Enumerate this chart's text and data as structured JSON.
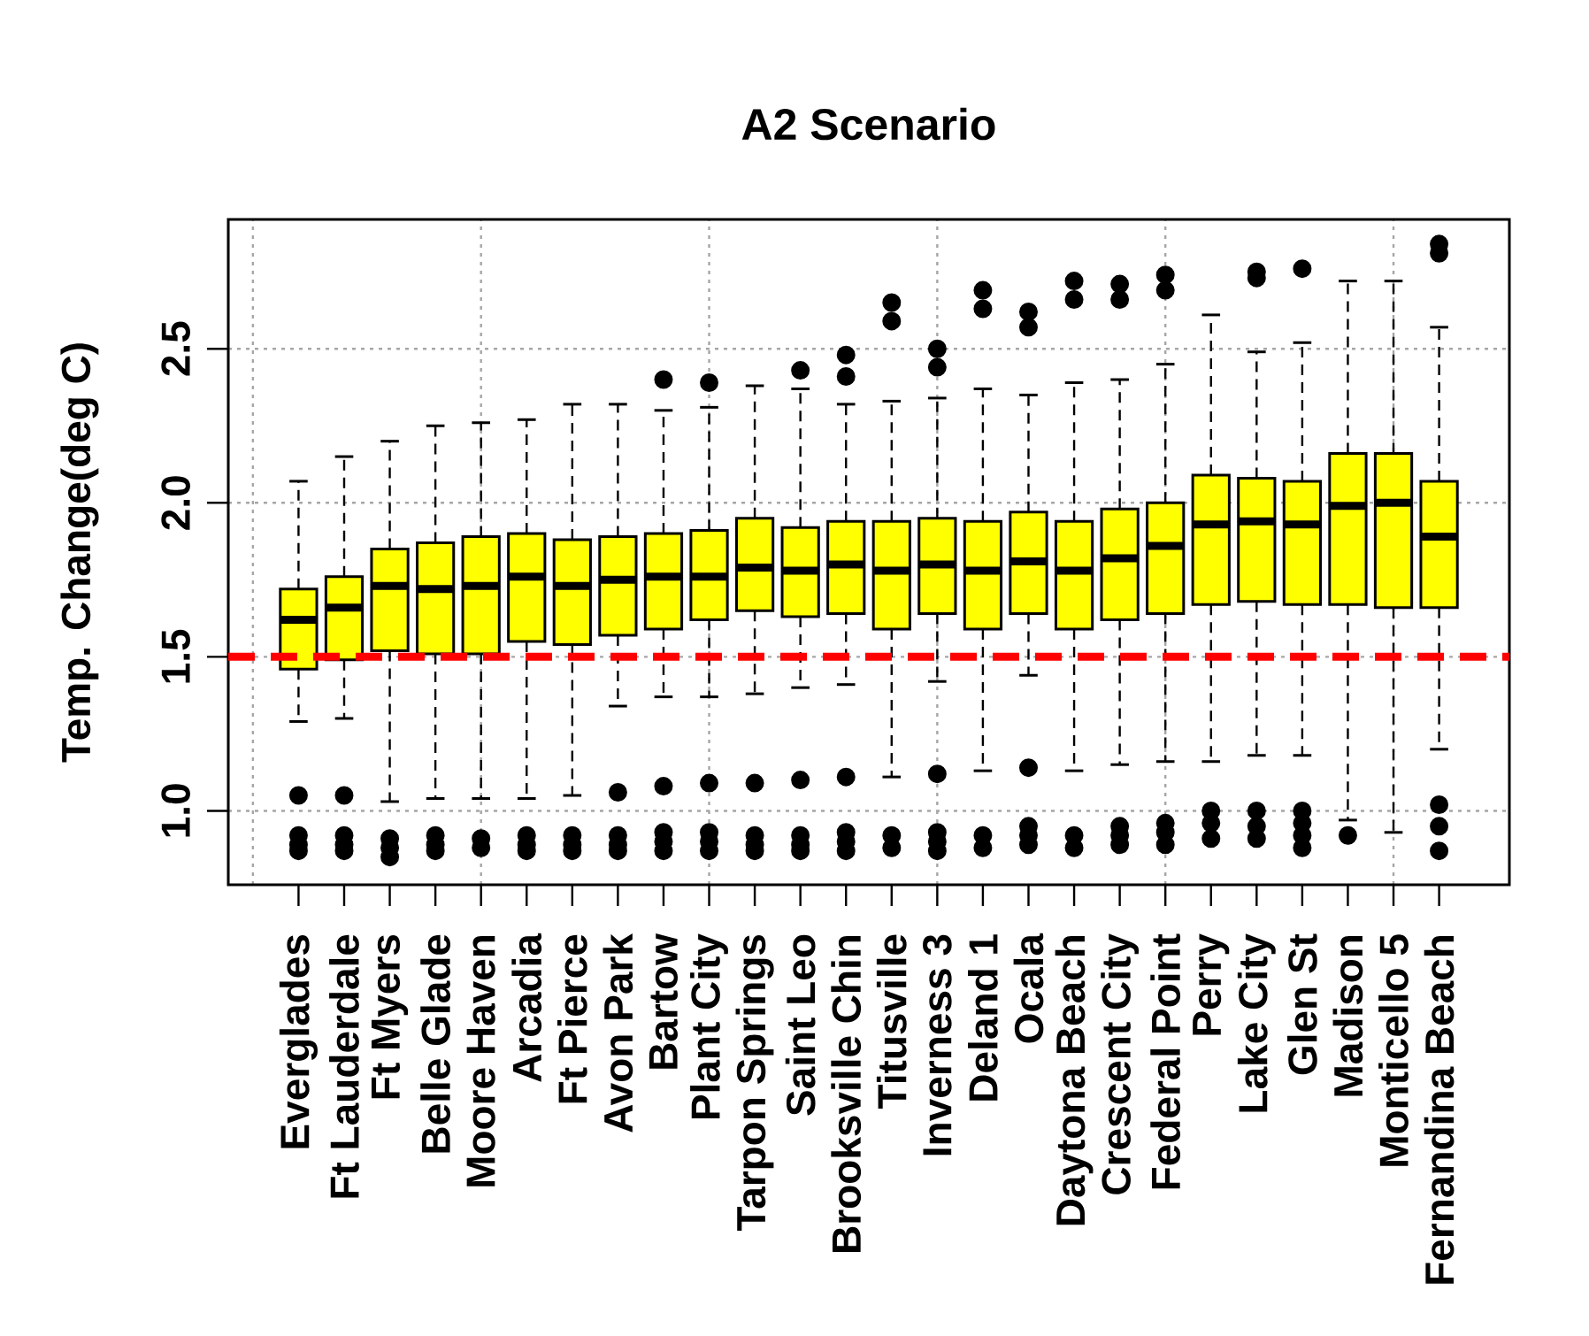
{
  "chart_data": {
    "type": "box",
    "title": "A2 Scenario",
    "ylabel": "Temp. Change(deg C)",
    "categories": [
      "Everglades",
      "Ft Lauderdale",
      "Ft Myers",
      "Belle Glade",
      "Moore Haven",
      "Arcadia",
      "Ft Pierce",
      "Avon Park",
      "Bartow",
      "Plant City",
      "Tarpon Springs",
      "Saint Leo",
      "Brooksville Chin",
      "Titusville",
      "Inverness 3",
      "Deland 1",
      "Ocala",
      "Daytona Beach",
      "Crescent City",
      "Federal Point",
      "Perry",
      "Lake City",
      "Glen St",
      "Madison",
      "Monticello 5",
      "Fernandina Beach"
    ],
    "boxes": [
      {
        "low": 1.29,
        "q1": 1.46,
        "median": 1.62,
        "q3": 1.72,
        "high": 2.07,
        "outliers": [
          1.05,
          0.92,
          0.89,
          0.87
        ]
      },
      {
        "low": 1.3,
        "q1": 1.49,
        "median": 1.66,
        "q3": 1.76,
        "high": 2.15,
        "outliers": [
          1.05,
          0.92,
          0.89,
          0.87
        ]
      },
      {
        "low": 1.03,
        "q1": 1.52,
        "median": 1.73,
        "q3": 1.85,
        "high": 2.2,
        "outliers": [
          0.91,
          0.88,
          0.85
        ]
      },
      {
        "low": 1.04,
        "q1": 1.51,
        "median": 1.72,
        "q3": 1.87,
        "high": 2.25,
        "outliers": [
          0.92,
          0.89,
          0.87
        ]
      },
      {
        "low": 1.04,
        "q1": 1.51,
        "median": 1.73,
        "q3": 1.89,
        "high": 2.26,
        "outliers": [
          0.91,
          0.88
        ]
      },
      {
        "low": 1.04,
        "q1": 1.55,
        "median": 1.76,
        "q3": 1.9,
        "high": 2.27,
        "outliers": [
          0.92,
          0.89,
          0.87
        ]
      },
      {
        "low": 1.05,
        "q1": 1.54,
        "median": 1.73,
        "q3": 1.88,
        "high": 2.32,
        "outliers": [
          0.92,
          0.89,
          0.87
        ]
      },
      {
        "low": 1.34,
        "q1": 1.57,
        "median": 1.75,
        "q3": 1.89,
        "high": 2.32,
        "outliers": [
          1.06,
          0.92,
          0.89,
          0.87
        ]
      },
      {
        "low": 1.37,
        "q1": 1.59,
        "median": 1.76,
        "q3": 1.9,
        "high": 2.3,
        "outliers": [
          2.4,
          1.08,
          0.93,
          0.9,
          0.87
        ]
      },
      {
        "low": 1.37,
        "q1": 1.62,
        "median": 1.76,
        "q3": 1.91,
        "high": 2.31,
        "outliers": [
          2.39,
          1.09,
          0.93,
          0.9,
          0.87
        ]
      },
      {
        "low": 1.38,
        "q1": 1.65,
        "median": 1.79,
        "q3": 1.95,
        "high": 2.38,
        "outliers": [
          1.09,
          0.92,
          0.89,
          0.87
        ]
      },
      {
        "low": 1.4,
        "q1": 1.63,
        "median": 1.78,
        "q3": 1.92,
        "high": 2.37,
        "outliers": [
          2.43,
          1.1,
          0.92,
          0.89,
          0.87
        ]
      },
      {
        "low": 1.41,
        "q1": 1.64,
        "median": 1.8,
        "q3": 1.94,
        "high": 2.32,
        "outliers": [
          2.48,
          2.41,
          1.11,
          0.93,
          0.9,
          0.87
        ]
      },
      {
        "low": 1.11,
        "q1": 1.59,
        "median": 1.78,
        "q3": 1.94,
        "high": 2.33,
        "outliers": [
          2.65,
          2.59,
          0.92,
          0.88
        ]
      },
      {
        "low": 1.42,
        "q1": 1.64,
        "median": 1.8,
        "q3": 1.95,
        "high": 2.34,
        "outliers": [
          2.5,
          2.44,
          1.12,
          0.93,
          0.9,
          0.87
        ]
      },
      {
        "low": 1.13,
        "q1": 1.59,
        "median": 1.78,
        "q3": 1.94,
        "high": 2.37,
        "outliers": [
          2.69,
          2.63,
          0.92,
          0.88
        ]
      },
      {
        "low": 1.44,
        "q1": 1.64,
        "median": 1.81,
        "q3": 1.97,
        "high": 2.35,
        "outliers": [
          2.62,
          2.57,
          1.14,
          0.95,
          0.92,
          0.89
        ]
      },
      {
        "low": 1.13,
        "q1": 1.59,
        "median": 1.78,
        "q3": 1.94,
        "high": 2.39,
        "outliers": [
          2.72,
          2.66,
          0.92,
          0.88
        ]
      },
      {
        "low": 1.15,
        "q1": 1.62,
        "median": 1.82,
        "q3": 1.98,
        "high": 2.4,
        "outliers": [
          2.71,
          2.66,
          0.95,
          0.92,
          0.89
        ]
      },
      {
        "low": 1.16,
        "q1": 1.64,
        "median": 1.86,
        "q3": 2.0,
        "high": 2.45,
        "outliers": [
          2.74,
          2.69,
          0.96,
          0.93,
          0.89
        ]
      },
      {
        "low": 1.16,
        "q1": 1.67,
        "median": 1.93,
        "q3": 2.09,
        "high": 2.61,
        "outliers": [
          1.0,
          0.96,
          0.91
        ]
      },
      {
        "low": 1.18,
        "q1": 1.68,
        "median": 1.94,
        "q3": 2.08,
        "high": 2.49,
        "outliers": [
          2.75,
          2.73,
          1.0,
          0.95,
          0.91
        ]
      },
      {
        "low": 1.18,
        "q1": 1.67,
        "median": 1.93,
        "q3": 2.07,
        "high": 2.52,
        "outliers": [
          2.76,
          1.0,
          0.96,
          0.92,
          0.88
        ]
      },
      {
        "low": 0.97,
        "q1": 1.67,
        "median": 1.99,
        "q3": 2.16,
        "high": 2.72,
        "outliers": [
          0.92
        ]
      },
      {
        "low": 0.93,
        "q1": 1.66,
        "median": 2.0,
        "q3": 2.16,
        "high": 2.72
      },
      {
        "low": 1.2,
        "q1": 1.66,
        "median": 1.89,
        "q3": 2.07,
        "high": 2.57,
        "outliers": [
          2.84,
          2.81,
          1.02,
          0.95,
          0.87
        ]
      }
    ],
    "color": "#ffff00",
    "marker": "circle",
    "ylim": [
      0.76,
      2.92
    ],
    "yticks": [
      {
        "value": 1.0,
        "label": "1.0"
      },
      {
        "value": 1.5,
        "label": "1.5"
      },
      {
        "value": 2.0,
        "label": "2.0"
      },
      {
        "value": 2.5,
        "label": "2.5"
      }
    ],
    "grid": true,
    "ref_lines": [
      {
        "axis": "y",
        "value": 1.5,
        "color": "#ff0000",
        "line_style": "dashed"
      }
    ]
  }
}
